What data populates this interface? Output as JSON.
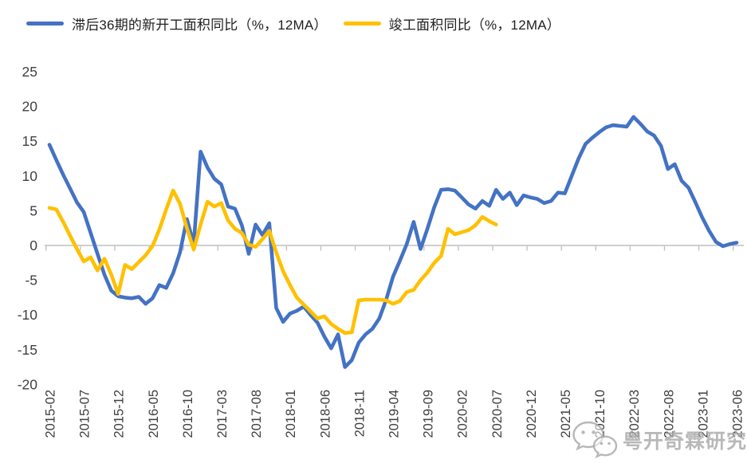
{
  "legend": {
    "items": [
      {
        "label": "滞后36期的新开工面积同比（%，12MA）",
        "color": "#4472C4"
      },
      {
        "label": "竣工面积同比（%，12MA）",
        "color": "#FFC000"
      }
    ]
  },
  "watermark": {
    "text": "粤开奇霖研究",
    "icon": "wechat-icon"
  },
  "chart_data": {
    "type": "line",
    "title": "",
    "xlabel": "",
    "ylabel": "",
    "ylim": [
      -20,
      25
    ],
    "y_ticks": [
      25,
      20,
      15,
      10,
      5,
      0,
      -5,
      -10,
      -15,
      -20
    ],
    "x_tick_labels": [
      "2015-02",
      "2015-07",
      "2015-12",
      "2016-05",
      "2016-10",
      "2017-03",
      "2017-08",
      "2018-01",
      "2018-06",
      "2018-11",
      "2019-04",
      "2019-09",
      "2020-02",
      "2020-07",
      "2020-12",
      "2021-05",
      "2021-10",
      "2022-03",
      "2022-08",
      "2023-01",
      "2023-06"
    ],
    "x_start": "2015-02",
    "x_step_months": 1,
    "grid": "zero-line-only",
    "legend_position": "top-left",
    "axis_color": "#BFBFBF",
    "label_color": "#404040",
    "series": [
      {
        "name": "滞后36期的新开工面积同比（%，12MA）",
        "color": "#4472C4",
        "start": "2015-02",
        "end": "2023-06",
        "values": [
          14.5,
          12.3,
          10.2,
          8.2,
          6.2,
          4.8,
          1.8,
          -1.2,
          -4.2,
          -6.5,
          -7.3,
          -7.5,
          -7.6,
          -7.4,
          -8.4,
          -7.6,
          -5.7,
          -6.1,
          -4.0,
          -1.0,
          3.8,
          0.2,
          13.5,
          11.2,
          9.6,
          8.8,
          5.6,
          5.3,
          2.9,
          -1.2,
          3.0,
          1.5,
          3.2,
          -9.0,
          -11.0,
          -9.8,
          -9.4,
          -8.8,
          -10.0,
          -11.1,
          -13.1,
          -14.8,
          -12.8,
          -17.5,
          -16.5,
          -14.0,
          -12.8,
          -12.0,
          -10.5,
          -7.8,
          -4.5,
          -2.2,
          0.2,
          3.4,
          -0.5,
          2.4,
          5.5,
          8.0,
          8.1,
          7.9,
          6.9,
          5.9,
          5.3,
          6.4,
          5.7,
          8.0,
          6.7,
          7.6,
          5.8,
          7.2,
          6.9,
          6.7,
          6.1,
          6.4,
          7.6,
          7.5,
          10.0,
          12.5,
          14.6,
          15.5,
          16.3,
          17.0,
          17.3,
          17.2,
          17.1,
          18.5,
          17.5,
          16.4,
          15.8,
          14.3,
          11.0,
          11.7,
          9.3,
          8.3,
          6.2,
          4.0,
          2.1,
          0.5,
          -0.1,
          0.2,
          0.4
        ]
      },
      {
        "name": "竣工面积同比（%，12MA）",
        "color": "#FFC000",
        "start": "2015-02",
        "end": "2020-07",
        "values": [
          5.4,
          5.2,
          3.4,
          1.4,
          -0.5,
          -2.3,
          -1.7,
          -3.6,
          -1.9,
          -4.2,
          -7.0,
          -2.8,
          -3.4,
          -2.4,
          -1.4,
          -0.1,
          2.3,
          5.2,
          7.9,
          6.0,
          2.5,
          -0.6,
          3.0,
          6.3,
          5.6,
          6.1,
          3.6,
          2.4,
          1.8,
          0.1,
          -0.2,
          0.9,
          2.1,
          -1.0,
          -3.7,
          -5.7,
          -7.5,
          -8.5,
          -9.5,
          -10.5,
          -10.2,
          -11.3,
          -12.0,
          -12.6,
          -12.5,
          -7.9,
          -7.8,
          -7.8,
          -7.8,
          -7.9,
          -8.4,
          -8.0,
          -6.7,
          -6.4,
          -5.0,
          -3.9,
          -2.5,
          -1.5,
          2.4,
          1.6,
          1.9,
          2.2,
          2.9,
          4.1,
          3.5,
          3.0
        ]
      }
    ]
  }
}
